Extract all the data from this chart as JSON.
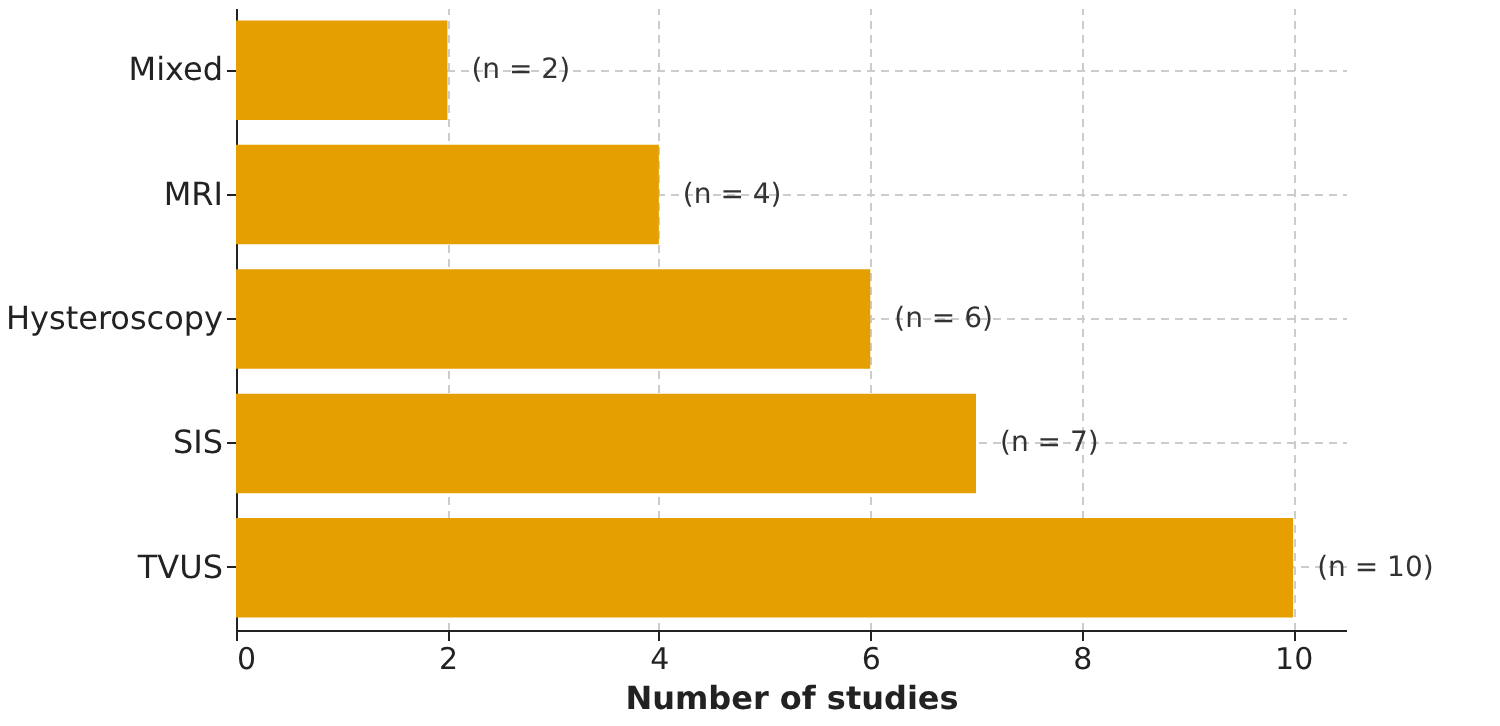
{
  "chart_data": {
    "type": "bar",
    "orientation": "horizontal",
    "xlabel": "Number of studies",
    "categories": [
      "Mixed",
      "MRI",
      "Hysteroscopy",
      "SIS",
      "TVUS"
    ],
    "values": [
      2,
      4,
      6,
      7,
      10
    ],
    "value_labels": [
      "(n = 2)",
      "(n = 4)",
      "(n = 6)",
      "(n = 7)",
      "(n = 10)"
    ],
    "color": "#e69f00",
    "xlim": [
      0,
      10.5
    ],
    "xticks": [
      0,
      2,
      4,
      6,
      8,
      10
    ],
    "grid": true
  }
}
